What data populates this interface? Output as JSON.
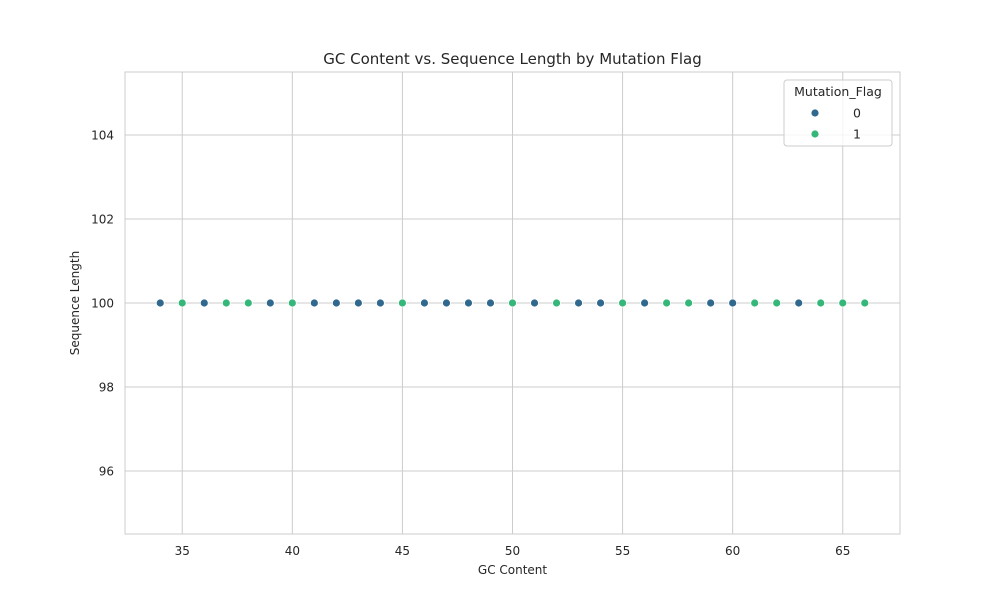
{
  "chart_data": {
    "type": "scatter",
    "title": "GC Content vs. Sequence Length by Mutation Flag",
    "xlabel": "GC Content",
    "ylabel": "Sequence Length",
    "xlim": [
      32.4,
      67.6
    ],
    "ylim": [
      94.5,
      105.5
    ],
    "xticks": [
      35,
      40,
      45,
      50,
      55,
      60,
      65
    ],
    "yticks": [
      96,
      98,
      100,
      102,
      104
    ],
    "grid": true,
    "legend": {
      "title": "Mutation_Flag",
      "position": "top-right",
      "entries": [
        {
          "label": "0",
          "color": "#30688e"
        },
        {
          "label": "1",
          "color": "#35b779"
        }
      ]
    },
    "series": [
      {
        "name": "0",
        "color": "#30688e",
        "points": [
          {
            "x": 34,
            "y": 100
          },
          {
            "x": 36,
            "y": 100
          },
          {
            "x": 39,
            "y": 100
          },
          {
            "x": 41,
            "y": 100
          },
          {
            "x": 42,
            "y": 100
          },
          {
            "x": 43,
            "y": 100
          },
          {
            "x": 44,
            "y": 100
          },
          {
            "x": 46,
            "y": 100
          },
          {
            "x": 47,
            "y": 100
          },
          {
            "x": 48,
            "y": 100
          },
          {
            "x": 49,
            "y": 100
          },
          {
            "x": 51,
            "y": 100
          },
          {
            "x": 53,
            "y": 100
          },
          {
            "x": 54,
            "y": 100
          },
          {
            "x": 56,
            "y": 100
          },
          {
            "x": 59,
            "y": 100
          },
          {
            "x": 60,
            "y": 100
          },
          {
            "x": 63,
            "y": 100
          }
        ]
      },
      {
        "name": "1",
        "color": "#35b779",
        "points": [
          {
            "x": 35,
            "y": 100
          },
          {
            "x": 37,
            "y": 100
          },
          {
            "x": 38,
            "y": 100
          },
          {
            "x": 40,
            "y": 100
          },
          {
            "x": 45,
            "y": 100
          },
          {
            "x": 50,
            "y": 100
          },
          {
            "x": 52,
            "y": 100
          },
          {
            "x": 55,
            "y": 100
          },
          {
            "x": 57,
            "y": 100
          },
          {
            "x": 58,
            "y": 100
          },
          {
            "x": 61,
            "y": 100
          },
          {
            "x": 62,
            "y": 100
          },
          {
            "x": 64,
            "y": 100
          },
          {
            "x": 65,
            "y": 100
          },
          {
            "x": 66,
            "y": 100
          }
        ]
      }
    ]
  }
}
